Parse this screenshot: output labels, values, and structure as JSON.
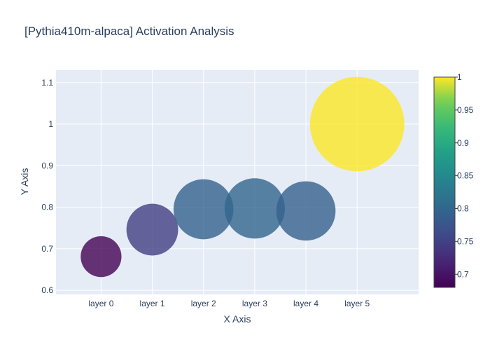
{
  "chart_data": {
    "type": "scatter",
    "title": "[Pythia410m-alpaca] Activation Analysis",
    "xlabel": "X Axis",
    "ylabel": "Y Axis",
    "categories": [
      "layer 0",
      "layer 1",
      "layer 2",
      "layer 3",
      "layer 4",
      "layer 5"
    ],
    "values": [
      0.681,
      0.746,
      0.795,
      0.797,
      0.791,
      1.0
    ],
    "color_values": [
      0.681,
      0.746,
      0.795,
      0.797,
      0.791,
      1.0
    ],
    "ylim": [
      0.59,
      1.13
    ],
    "yticks": [
      0.6,
      0.7,
      0.8,
      0.9,
      1,
      1.1
    ],
    "ytick_labels": [
      "0.6",
      "0.7",
      "0.8",
      "0.9",
      "1",
      "1.1"
    ],
    "colorbar": {
      "colorscale": "Viridis",
      "range": [
        0.68,
        1.0
      ],
      "ticks": [
        0.7,
        0.75,
        0.8,
        0.85,
        0.9,
        0.95,
        1
      ],
      "tick_labels": [
        "0.7",
        "0.75",
        "0.8",
        "0.85",
        "0.9",
        "0.95",
        "1"
      ]
    },
    "marker_opacity": 0.8,
    "grid": true,
    "plot_background": "#e5ecf6"
  }
}
